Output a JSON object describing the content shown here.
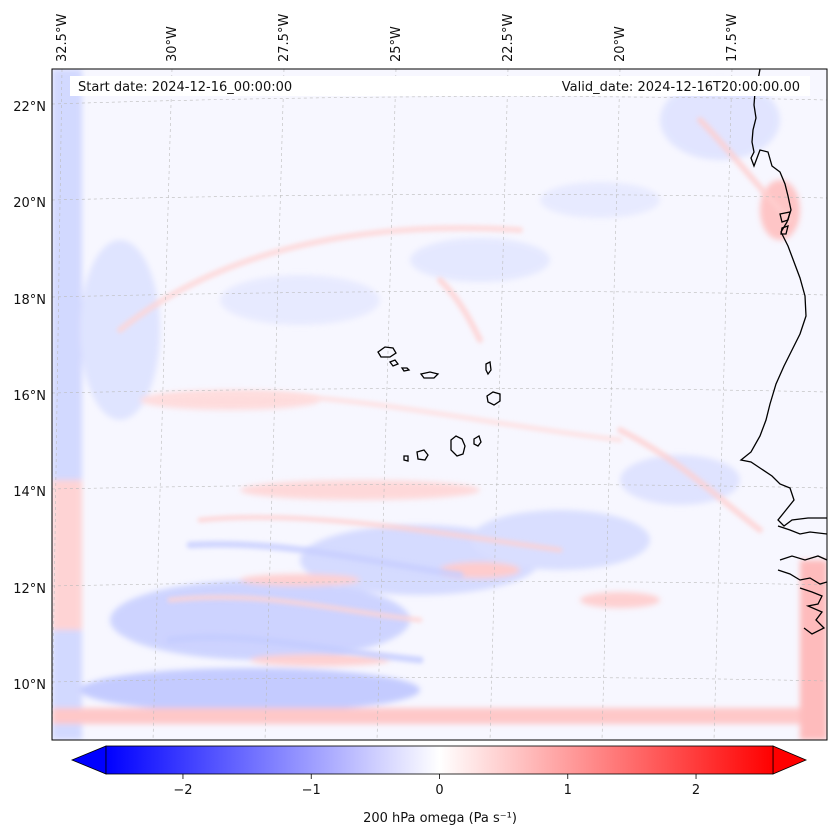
{
  "header": {
    "start_date": "Start date: 2024-12-16_00:00:00",
    "valid_date": "Valid_date: 2024-12-16T20:00:00.00"
  },
  "map": {
    "lon_labels": [
      "32.5°W",
      "30°W",
      "27.5°W",
      "25°W",
      "22.5°W",
      "20°W",
      "17.5°W"
    ],
    "lat_labels": [
      "22°N",
      "20°N",
      "18°N",
      "16°N",
      "14°N",
      "12°N",
      "10°N"
    ],
    "field": "200 hPa omega",
    "field_units": "Pa s⁻¹",
    "diverging_colormap": {
      "negative": "#0000ff",
      "zero": "#ffffff",
      "positive": "#ff0000"
    }
  },
  "colorbar": {
    "label": "200 hPa omega (Pa s$^{-1}$)",
    "label_display": "200 hPa omega (Pa s⁻¹)",
    "ticks": [
      "−2",
      "−1",
      "0",
      "1",
      "2"
    ],
    "range": [
      -2.6,
      2.6
    ],
    "extend": "both"
  }
}
